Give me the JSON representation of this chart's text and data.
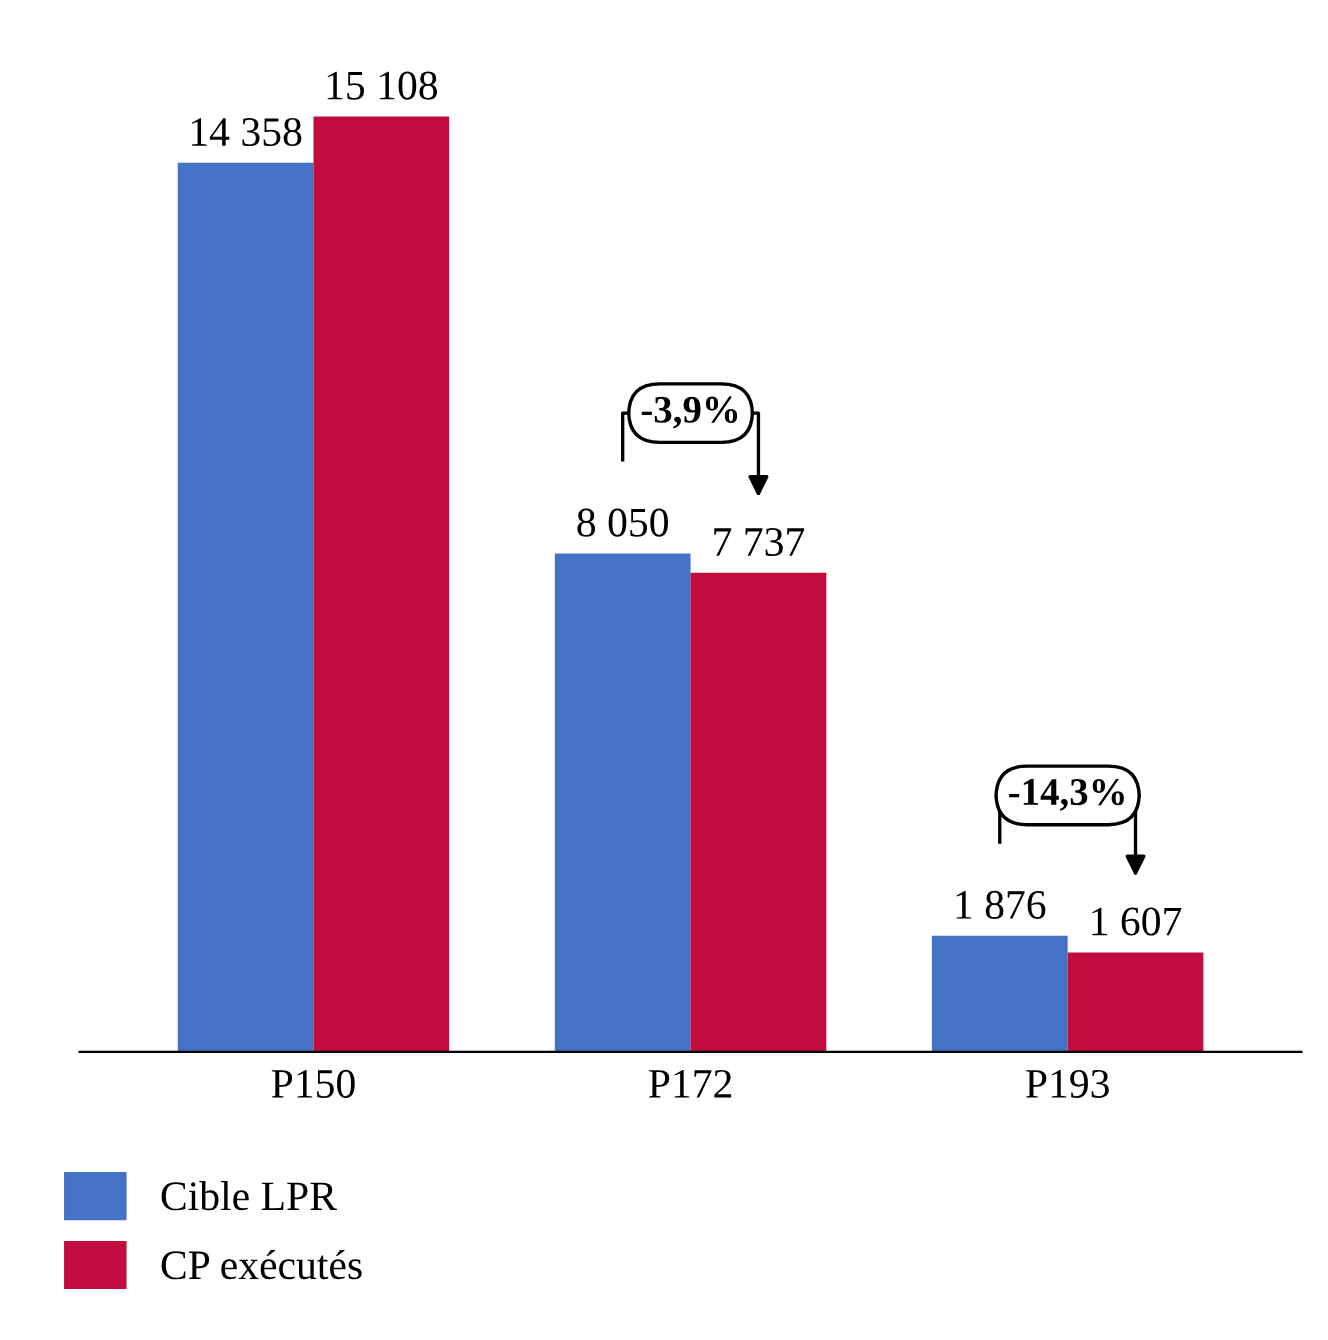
{
  "chart_data": {
    "type": "bar",
    "categories": [
      "P150",
      "P172",
      "P193"
    ],
    "series": [
      {
        "name": "Cible LPR",
        "color": "#4472c4",
        "values": [
          14358,
          8050,
          1876
        ],
        "value_labels": [
          "14 358",
          "8 050",
          "1 876"
        ]
      },
      {
        "name": "CP exécutés",
        "color": "#c00d3e",
        "values": [
          15108,
          7737,
          1607
        ],
        "value_labels": [
          "15 108",
          "7 737",
          "1 607"
        ]
      }
    ],
    "annotations": [
      "-3,9%",
      "-14,3%"
    ],
    "legend": "bottom left",
    "grid": false
  }
}
